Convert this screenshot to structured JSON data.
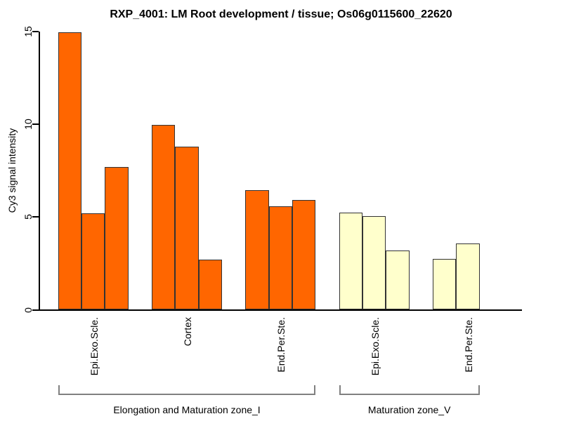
{
  "figure": {
    "background": "#FFFFFF"
  },
  "chart_data": {
    "type": "bar",
    "title": "RXP_4001: LM Root development / tissue; Os06g0115600_22620",
    "xlabel": "",
    "ylabel": "Cy3 signal intensity",
    "ylim": [
      0,
      15
    ],
    "yticks": [
      "0",
      "5",
      "10",
      "15"
    ],
    "grid": false,
    "legend": false,
    "bar_border_color": "#333333",
    "axis_color": "#000000",
    "bracket_color": "#808080",
    "groups": [
      {
        "label": "Epi.Exo.Scle.",
        "zone": 0,
        "color": "#FF6600",
        "values": [
          14.97,
          5.2,
          7.68
        ]
      },
      {
        "label": "Cortex",
        "zone": 0,
        "color": "#FF6600",
        "values": [
          9.97,
          8.79,
          2.69
        ]
      },
      {
        "label": "End.Per.Ste.",
        "zone": 0,
        "color": "#FF6600",
        "values": [
          6.46,
          5.58,
          5.92
        ]
      },
      {
        "label": "Epi.Exo.Scle.",
        "zone": 1,
        "color": "#FFFFCC",
        "values": [
          5.23,
          5.05,
          3.18
        ]
      },
      {
        "label": "End.Per.Ste.",
        "zone": 1,
        "color": "#FFFFCC",
        "values": [
          2.73,
          3.59,
          null
        ]
      }
    ],
    "zones": [
      {
        "label": "Elongation and Maturation zone_I",
        "group_start": 0,
        "group_end": 2
      },
      {
        "label": "Maturation zone_V",
        "group_start": 3,
        "group_end": 4
      }
    ]
  }
}
